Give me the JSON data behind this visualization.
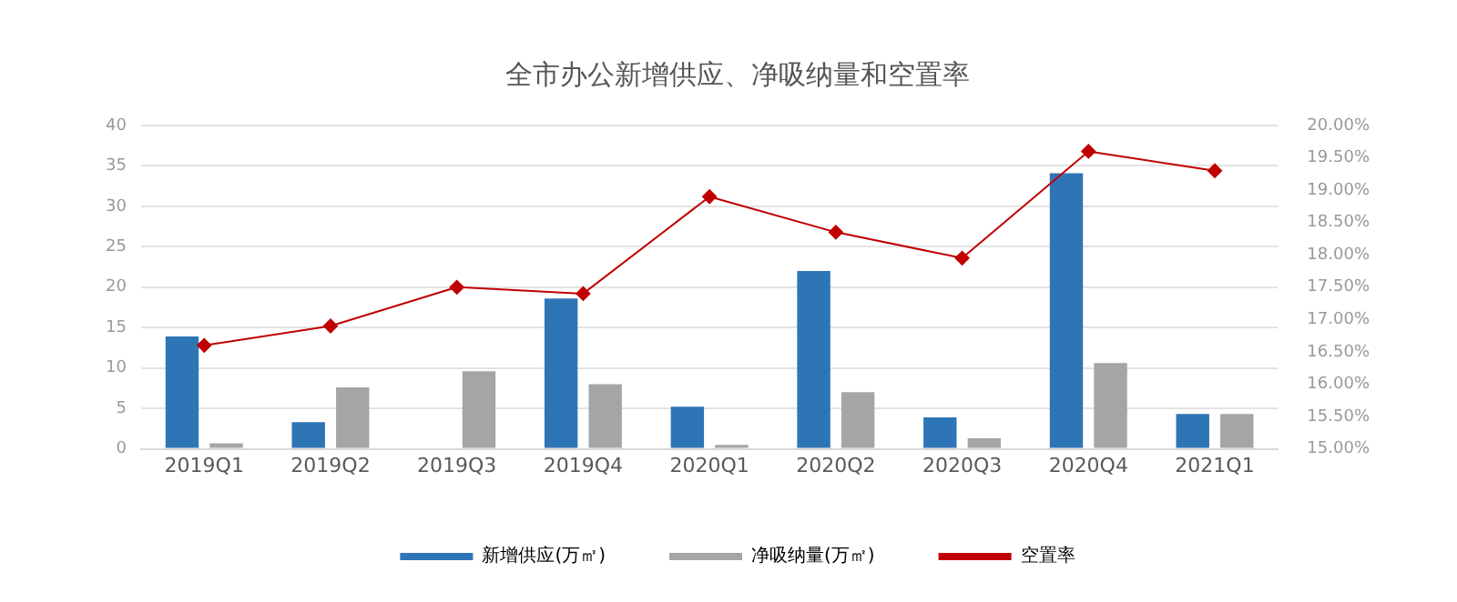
{
  "chart_data": {
    "type": "bar",
    "title": "全市办公新增供应、净吸纳量和空置率",
    "categories": [
      "2019Q1",
      "2019Q2",
      "2019Q3",
      "2019Q4",
      "2020Q1",
      "2020Q2",
      "2020Q3",
      "2020Q4",
      "2021Q1"
    ],
    "series": [
      {
        "name": "新增供应(万㎡)",
        "color": "#2e75b6",
        "values": [
          13.9,
          3.3,
          0,
          18.6,
          5.2,
          22.0,
          3.9,
          34.1,
          4.3
        ]
      },
      {
        "name": "净吸纳量(万㎡)",
        "color": "#a5a5a5",
        "values": [
          0.7,
          7.6,
          9.6,
          8.0,
          0.5,
          7.0,
          1.3,
          10.6,
          4.3
        ]
      },
      {
        "name": "空置率",
        "type": "line",
        "axis": "y2",
        "color": "#c00000",
        "values": [
          16.6,
          16.9,
          17.5,
          17.4,
          18.9,
          18.35,
          17.95,
          19.6,
          19.3
        ]
      }
    ],
    "ylim": [
      0,
      40
    ],
    "yticks": [
      0,
      5,
      10,
      15,
      20,
      25,
      30,
      35,
      40
    ],
    "y2lim": [
      15,
      20
    ],
    "y2ticks": [
      {
        "value": 15,
        "label": "15.00%"
      },
      {
        "value": 15.5,
        "label": "15.50%"
      },
      {
        "value": 16,
        "label": "16.00%"
      },
      {
        "value": 16.5,
        "label": "16.50%"
      },
      {
        "value": 17,
        "label": "17.00%"
      },
      {
        "value": 17.5,
        "label": "17.50%"
      },
      {
        "value": 18,
        "label": "18.00%"
      },
      {
        "value": 18.5,
        "label": "18.50%"
      },
      {
        "value": 19,
        "label": "19.00%"
      },
      {
        "value": 19.5,
        "label": "19.50%"
      },
      {
        "value": 20,
        "label": "20.00%"
      }
    ],
    "grid": "y",
    "legend": "bottom",
    "marker": "diamond",
    "line_style": "solid"
  }
}
